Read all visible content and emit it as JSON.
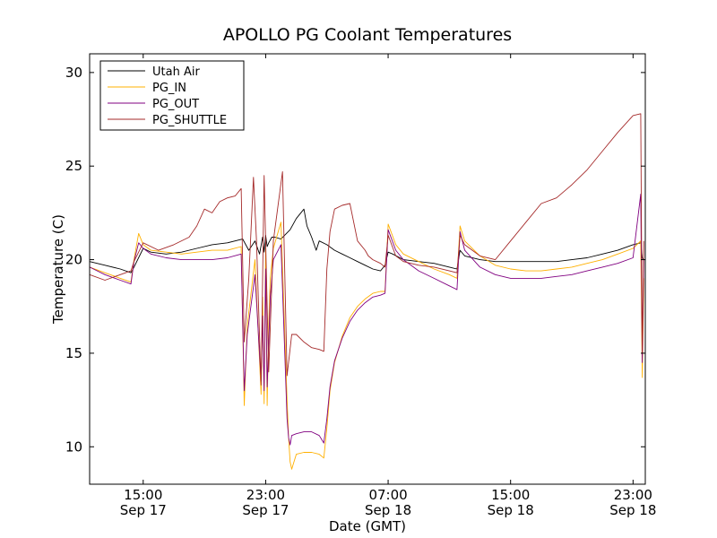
{
  "chart_data": {
    "type": "line",
    "title": "APOLLO PG Coolant Temperatures",
    "xlabel": "Date (GMT)",
    "ylabel": "Temperature (C)",
    "ylim": [
      8,
      31
    ],
    "xlim_hours": [
      11.5,
      47.8
    ],
    "grid": false,
    "legend_position": "top-left",
    "x_ticks": [
      {
        "hour": 15,
        "time": "15:00",
        "date": "Sep 17"
      },
      {
        "hour": 23,
        "time": "23:00",
        "date": "Sep 17"
      },
      {
        "hour": 31,
        "time": "07:00",
        "date": "Sep 18"
      },
      {
        "hour": 39,
        "time": "15:00",
        "date": "Sep 18"
      },
      {
        "hour": 47,
        "time": "23:00",
        "date": "Sep 18"
      }
    ],
    "y_ticks": [
      10,
      15,
      20,
      25,
      30
    ],
    "series": [
      {
        "name": "Utah Air",
        "color": "#000000",
        "x": [
          11.5,
          12.5,
          13.5,
          14.2,
          14.4,
          15.0,
          15.5,
          16.5,
          17.5,
          18.5,
          19.5,
          20.5,
          21.5,
          21.9,
          22.3,
          22.6,
          22.8,
          22.9,
          23.0,
          23.1,
          23.2,
          23.4,
          23.6,
          24.0,
          24.6,
          25.0,
          25.5,
          25.7,
          26.0,
          26.3,
          26.5,
          27.0,
          27.5,
          28.0,
          28.5,
          29.0,
          29.5,
          30.0,
          30.5,
          30.8,
          31.0,
          31.3,
          32.0,
          33.0,
          34.0,
          35.0,
          35.5,
          35.7,
          36.0,
          37.0,
          38.0,
          39.0,
          40.0,
          41.0,
          42.0,
          43.0,
          44.0,
          45.0,
          46.0,
          47.0,
          47.5,
          47.6,
          47.7
        ],
        "y": [
          19.9,
          19.7,
          19.5,
          19.3,
          19.6,
          20.6,
          20.4,
          20.3,
          20.4,
          20.6,
          20.8,
          20.9,
          21.1,
          20.5,
          21.0,
          20.3,
          21.2,
          20.4,
          21.3,
          20.7,
          20.9,
          21.2,
          21.2,
          21.1,
          21.6,
          22.2,
          22.7,
          21.8,
          21.2,
          20.5,
          21.0,
          20.8,
          20.5,
          20.3,
          20.1,
          19.9,
          19.7,
          19.5,
          19.4,
          19.7,
          20.4,
          20.3,
          20.0,
          19.9,
          19.8,
          19.6,
          19.5,
          20.5,
          20.2,
          20.0,
          19.9,
          19.9,
          19.9,
          19.9,
          19.9,
          20.0,
          20.1,
          20.3,
          20.5,
          20.8,
          20.9,
          20.1,
          20.0
        ]
      },
      {
        "name": "PG_IN",
        "color": "#ffb000",
        "x": [
          11.5,
          12.5,
          13.5,
          14.2,
          14.4,
          14.7,
          15.0,
          15.5,
          16.5,
          17.5,
          18.5,
          19.5,
          20.5,
          21.4,
          21.6,
          21.8,
          22.3,
          22.7,
          22.8,
          22.9,
          23.0,
          23.1,
          23.2,
          23.3,
          23.5,
          24.0,
          24.4,
          24.5,
          24.6,
          24.7,
          25.0,
          25.5,
          26.0,
          26.5,
          26.8,
          27.0,
          27.2,
          27.5,
          28.0,
          28.5,
          29.0,
          29.5,
          30.0,
          30.5,
          30.8,
          31.0,
          31.5,
          32.0,
          33.0,
          34.0,
          35.0,
          35.5,
          35.7,
          36.0,
          37.0,
          38.0,
          39.0,
          40.0,
          41.0,
          42.0,
          43.0,
          44.0,
          45.0,
          46.0,
          47.0,
          47.5,
          47.6,
          47.7
        ],
        "y": [
          19.6,
          19.3,
          19.0,
          18.8,
          20.0,
          21.4,
          20.8,
          20.5,
          20.4,
          20.3,
          20.4,
          20.5,
          20.5,
          20.7,
          12.2,
          16.5,
          20.0,
          12.8,
          18.0,
          12.3,
          20.6,
          12.2,
          16.5,
          19.0,
          20.6,
          22.0,
          12.5,
          10.5,
          9.2,
          8.8,
          9.6,
          9.7,
          9.7,
          9.6,
          9.4,
          11.0,
          13.0,
          14.5,
          15.9,
          16.9,
          17.5,
          17.9,
          18.2,
          18.3,
          18.3,
          21.9,
          20.8,
          20.3,
          19.9,
          19.5,
          19.2,
          19.0,
          21.8,
          21.0,
          20.2,
          19.7,
          19.5,
          19.4,
          19.4,
          19.5,
          19.6,
          19.8,
          20.0,
          20.3,
          20.6,
          21.0,
          13.7,
          19.0
        ]
      },
      {
        "name": "PG_OUT",
        "color": "#800080",
        "x": [
          11.5,
          12.5,
          13.5,
          14.2,
          14.4,
          14.7,
          15.0,
          15.5,
          16.5,
          17.5,
          18.5,
          19.5,
          20.5,
          21.4,
          21.6,
          21.8,
          22.3,
          22.7,
          22.8,
          22.9,
          23.0,
          23.1,
          23.2,
          23.3,
          23.5,
          24.0,
          24.4,
          24.5,
          24.6,
          24.7,
          25.0,
          25.5,
          26.0,
          26.5,
          26.8,
          27.0,
          27.2,
          27.5,
          28.0,
          28.5,
          29.0,
          29.5,
          30.0,
          30.5,
          30.8,
          31.0,
          31.5,
          32.0,
          33.0,
          34.0,
          35.0,
          35.5,
          35.7,
          36.0,
          37.0,
          38.0,
          39.0,
          40.0,
          41.0,
          42.0,
          43.0,
          44.0,
          45.0,
          46.0,
          47.0,
          47.5,
          47.6,
          47.7
        ],
        "y": [
          19.6,
          19.2,
          18.9,
          18.7,
          19.9,
          20.9,
          20.6,
          20.3,
          20.1,
          20.0,
          20.0,
          20.0,
          20.1,
          20.3,
          13.0,
          16.0,
          19.2,
          13.5,
          17.0,
          13.0,
          19.5,
          13.2,
          15.5,
          18.0,
          20.0,
          20.8,
          11.5,
          10.5,
          10.1,
          10.6,
          10.7,
          10.8,
          10.8,
          10.6,
          10.2,
          11.5,
          13.2,
          14.6,
          15.8,
          16.7,
          17.3,
          17.7,
          18.0,
          18.1,
          18.2,
          21.6,
          20.5,
          20.0,
          19.4,
          19.0,
          18.6,
          18.4,
          21.5,
          20.5,
          19.6,
          19.2,
          19.0,
          19.0,
          19.0,
          19.1,
          19.2,
          19.4,
          19.6,
          19.8,
          20.1,
          23.5,
          14.5,
          20.0
        ]
      },
      {
        "name": "PG_SHUTTLE",
        "color": "#a52a2a",
        "x": [
          11.5,
          12.5,
          13.5,
          14.2,
          14.4,
          15.0,
          16.0,
          17.0,
          18.0,
          18.5,
          19.0,
          19.5,
          20.0,
          20.5,
          21.0,
          21.4,
          21.6,
          21.9,
          22.2,
          22.4,
          22.7,
          22.8,
          22.9,
          23.2,
          23.5,
          24.1,
          24.4,
          24.7,
          25.0,
          25.5,
          26.0,
          26.5,
          26.8,
          27.0,
          27.2,
          27.5,
          28.0,
          28.5,
          29.0,
          29.5,
          29.7,
          30.0,
          30.5,
          30.8,
          31.0,
          31.5,
          32.0,
          33.0,
          34.0,
          35.0,
          35.5,
          35.7,
          36.0,
          37.0,
          38.0,
          39.0,
          40.0,
          41.0,
          42.0,
          43.0,
          44.0,
          45.0,
          46.0,
          47.0,
          47.5,
          47.6,
          47.7
        ],
        "y": [
          19.2,
          18.9,
          19.2,
          19.4,
          19.9,
          20.9,
          20.5,
          20.8,
          21.2,
          21.8,
          22.7,
          22.5,
          23.1,
          23.3,
          23.4,
          23.8,
          15.6,
          19.0,
          24.4,
          21.0,
          13.3,
          19.0,
          24.5,
          14.0,
          21.0,
          24.7,
          13.8,
          16.0,
          16.0,
          15.6,
          15.3,
          15.2,
          15.1,
          19.5,
          21.5,
          22.7,
          22.9,
          23.0,
          21.0,
          20.5,
          20.2,
          20.0,
          19.8,
          19.6,
          21.3,
          20.2,
          19.9,
          19.7,
          19.6,
          19.4,
          19.3,
          21.3,
          20.8,
          20.2,
          20.0,
          21.0,
          22.0,
          23.0,
          23.3,
          24.0,
          24.8,
          25.8,
          26.8,
          27.7,
          27.8,
          15.0,
          21.0
        ]
      }
    ]
  }
}
